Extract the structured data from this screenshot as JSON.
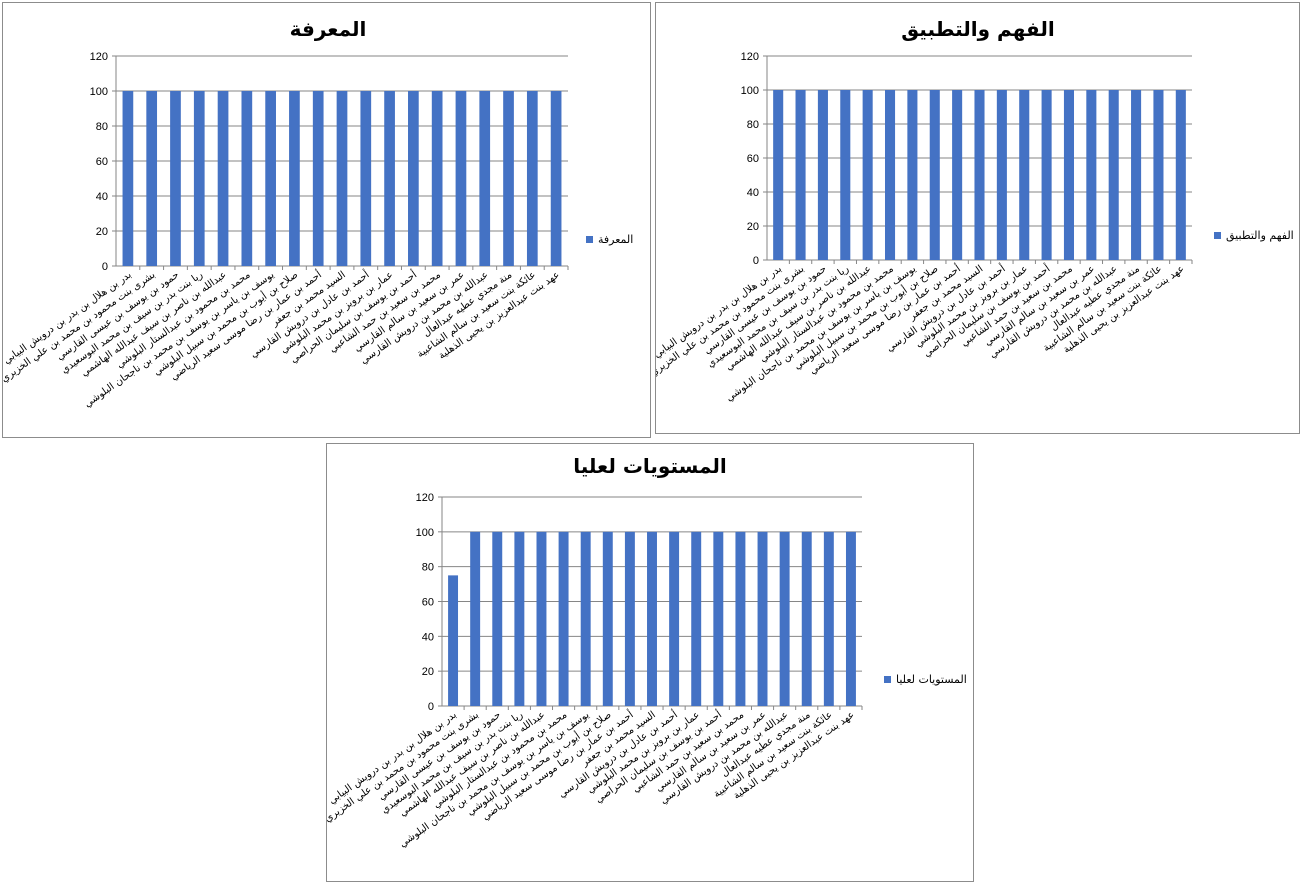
{
  "chart_data": [
    {
      "type": "bar",
      "title": "المعرفة",
      "legend_position": "right",
      "grid": true,
      "ylim": [
        0,
        120
      ],
      "yticks": [
        0,
        20,
        40,
        60,
        80,
        100,
        120
      ],
      "color": "#4472C4",
      "categories": [
        "بدر بن هلال بن بدر بن درويش البيابي",
        "بشرى بنت محمود بن محمد بن علي الخزيري",
        "حمود بن يوسف بن عيسى القارسي",
        "ريا بنت بدر بن سيف بن محمد البوسعيدي",
        "عبدالله بن ناصر بن سيف عبدالله الهاشمي",
        "محمد بن محمود بن عبدالستار البلوشي",
        "يوسف بن ياسر بن يوسف بن محمد بن ناجحان البلوشي",
        "صلاح بن أيوب بن محمد بن سبيل البلوشي",
        "أحمد بن عمار بن رضا موسى سعيد الرياضي",
        "السيد محمد بن جعفر",
        "أحمد بن عادل بن درويش القارسي",
        "عمار بن برويز بن محمد البلوشي",
        "أحمد بن يوسف بن سليمان الحراصي",
        "محمد بن سعيد بن حمد الشاعبي",
        "عمر بن سعيد بن سالم القارسي",
        "عبدالله بن محمد بن درويش القارسي",
        "منة مجدي عطيه عبدالعال",
        "عائكة بنت سعيد بن سالم الشاعبية",
        "عهد بنت عبدالعزيز بن يحيى الذهلية"
      ],
      "series": [
        {
          "name": "المعرفة",
          "values": [
            100,
            100,
            100,
            100,
            100,
            100,
            100,
            100,
            100,
            100,
            100,
            100,
            100,
            100,
            100,
            100,
            100,
            100,
            100
          ]
        }
      ]
    },
    {
      "type": "bar",
      "title": "الفهم والتطبيق",
      "legend_position": "right",
      "grid": true,
      "ylim": [
        0,
        120
      ],
      "yticks": [
        0,
        20,
        40,
        60,
        80,
        100,
        120
      ],
      "color": "#4472C4",
      "categories": [
        "بدر بن هلال بن بدر بن درويش البيابي",
        "بشرى بنت محمود بن محمد بن علي الخزيري",
        "حمود بن يوسف بن عيسى القارسي",
        "ريا بنت بدر بن سيف بن محمد البوسعيدي",
        "عبدالله بن ناصر بن سيف عبدالله الهاشمي",
        "محمد بن محمود بن عبدالستار البلوشي",
        "يوسف بن ياسر بن يوسف بن محمد بن ناجحان البلوشي",
        "صلاح بن أيوب بن محمد بن سبيل البلوشي",
        "أحمد بن عمار بن رضا موسى سعيد الرياضي",
        "السيد محمد بن جعفر",
        "أحمد بن عادل بن درويش القارسي",
        "عمار بن برويز بن محمد البلوشي",
        "أحمد بن يوسف بن سليمان الحراصي",
        "محمد بن سعيد بن حمد الشاعبي",
        "عمر بن سعيد بن سالم القارسي",
        "عبدالله بن محمد بن درويش القارسي",
        "منة مجدي عطيه عبدالعال",
        "عائكة بنت سعيد بن سالم الشاعبية",
        "عهد بنت عبدالعزيز بن يحيى الذهلية"
      ],
      "series": [
        {
          "name": "الفهم والتطبيق",
          "values": [
            100,
            100,
            100,
            100,
            100,
            100,
            100,
            100,
            100,
            100,
            100,
            100,
            100,
            100,
            100,
            100,
            100,
            100,
            100
          ]
        }
      ]
    },
    {
      "type": "bar",
      "title": "المستويات لعليا",
      "legend_position": "right",
      "grid": true,
      "ylim": [
        0,
        120
      ],
      "yticks": [
        0,
        20,
        40,
        60,
        80,
        100,
        120
      ],
      "color": "#4472C4",
      "categories": [
        "بدر بن هلال بن بدر بن درويش البيابي",
        "بشرى بنت محمود بن محمد بن علي الخزيري",
        "حمود بن يوسف بن عيسى القارسي",
        "ريا بنت بدر بن سيف بن محمد البوسعيدي",
        "عبدالله بن ناصر بن سيف عبدالله الهاشمي",
        "محمد بن محمود بن عبدالستار البلوشي",
        "يوسف بن ياسر بن يوسف بن محمد بن ناجحان البلوشي",
        "صلاح بن أيوب بن محمد بن سبيل البلوشي",
        "أحمد بن عمار بن رضا موسى سعيد الرياضي",
        "السيد محمد بن جعفر",
        "أحمد بن عادل بن درويش القارسي",
        "عمار بن برويز بن محمد البلوشي",
        "أحمد بن يوسف بن سليمان الحراصي",
        "محمد بن سعيد بن حمد الشاعبي",
        "عمر بن سعيد بن سالم القارسي",
        "عبدالله بن محمد بن درويش القارسي",
        "منة مجدي عطيه عبدالعال",
        "عائكة بنت سعيد بن سالم الشاعبية",
        "عهد بنت عبدالعزيز بن يحيى الذهلية"
      ],
      "series": [
        {
          "name": "المستويات لعليا",
          "values": [
            75,
            100,
            100,
            100,
            100,
            100,
            100,
            100,
            100,
            100,
            100,
            100,
            100,
            100,
            100,
            100,
            100,
            100,
            100
          ]
        }
      ]
    }
  ]
}
